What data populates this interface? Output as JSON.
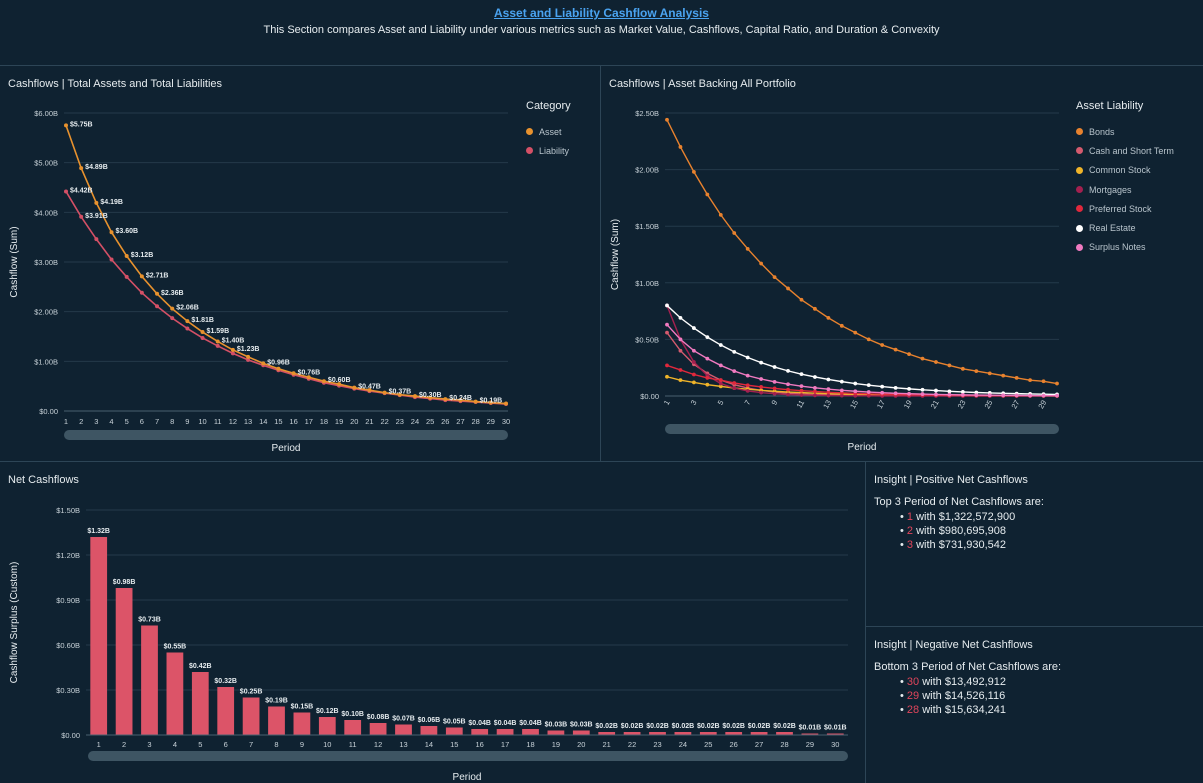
{
  "header": {
    "title": "Asset and Liability Cashflow Analysis",
    "subtitle": "This Section compares Asset and Liability under various metrics such as Market Value, Cashflows, Capital Ratio, and Duration & Convexity"
  },
  "colors": {
    "background": "#0f2231",
    "asset": "#e8922e",
    "liability": "#d45066",
    "bar": "#dc5468",
    "accent_link": "#4aa3f0",
    "highlight_number": "#e0455b"
  },
  "panels": {
    "total": {
      "title": "Cashflows | Total Assets and Total Liabilities"
    },
    "portfolio": {
      "title": "Cashflows | Asset Backing All Portfolio"
    },
    "net": {
      "title": "Net Cashflows"
    },
    "insight_positive": {
      "title": "Insight | Positive Net Cashflows",
      "intro": "Top 3 Period of Net Cashflows  are:",
      "items": [
        {
          "period": "1",
          "text": " with $1,322,572,900"
        },
        {
          "period": "2",
          "text": " with $980,695,908"
        },
        {
          "period": "3",
          "text": " with $731,930,542"
        }
      ]
    },
    "insight_negative": {
      "title": "Insight | Negative Net Cashflows",
      "intro": "Bottom 3 Period of Net Cashflows are:",
      "items": [
        {
          "period": "30",
          "text": " with $13,492,912"
        },
        {
          "period": "29",
          "text": " with $14,526,116"
        },
        {
          "period": "28",
          "text": " with $15,634,241"
        }
      ]
    }
  },
  "chart_data": [
    {
      "id": "total",
      "type": "line",
      "title": "Cashflows | Total Assets and Total Liabilities",
      "xlabel": "Period",
      "ylabel": "Cashflow (Sum)",
      "ylim": [
        0,
        6.0
      ],
      "yticks": [
        0,
        1,
        2,
        3,
        4,
        5,
        6
      ],
      "ytick_labels": [
        "$0.00",
        "$1.00B",
        "$2.00B",
        "$3.00B",
        "$4.00B",
        "$5.00B",
        "$6.00B"
      ],
      "x": [
        1,
        2,
        3,
        4,
        5,
        6,
        7,
        8,
        9,
        10,
        11,
        12,
        13,
        14,
        15,
        16,
        17,
        18,
        19,
        20,
        21,
        22,
        23,
        24,
        25,
        26,
        27,
        28,
        29,
        30
      ],
      "legend_title": "Category",
      "legend_position": "right",
      "grid": true,
      "series": [
        {
          "name": "Asset",
          "color": "#e8922e",
          "values": [
            5.75,
            4.89,
            4.19,
            3.6,
            3.12,
            2.71,
            2.36,
            2.06,
            1.81,
            1.59,
            1.4,
            1.23,
            1.09,
            0.96,
            0.85,
            0.76,
            0.68,
            0.6,
            0.54,
            0.47,
            0.42,
            0.37,
            0.33,
            0.3,
            0.27,
            0.24,
            0.22,
            0.19,
            0.17,
            0.15
          ],
          "labels": [
            "$5.75B",
            "$4.89B",
            "$4.19B",
            "$3.60B",
            "$3.12B",
            "$2.71B",
            "$2.36B",
            "$2.06B",
            "$1.81B",
            "$1.59B",
            "$1.40B",
            "$1.23B",
            "",
            "$0.96B",
            "",
            "$0.76B",
            "",
            "$0.60B",
            "",
            "$0.47B",
            "",
            "$0.37B",
            "",
            "$0.30B",
            "",
            "$0.24B",
            "",
            "$0.19B",
            "",
            ""
          ]
        },
        {
          "name": "Liability",
          "color": "#d45066",
          "values": [
            4.42,
            3.91,
            3.46,
            3.05,
            2.7,
            2.38,
            2.11,
            1.87,
            1.66,
            1.47,
            1.31,
            1.16,
            1.03,
            0.92,
            0.82,
            0.73,
            0.65,
            0.57,
            0.51,
            0.45,
            0.4,
            0.36,
            0.32,
            0.28,
            0.25,
            0.22,
            0.2,
            0.18,
            0.16,
            0.14
          ],
          "labels": [
            "$4.42B",
            "$3.91B",
            "",
            "",
            "",
            "",
            "",
            "",
            "",
            "",
            "",
            "",
            "",
            "",
            "",
            "",
            "",
            "",
            "",
            "",
            "",
            "",
            "",
            "",
            "",
            "",
            "",
            "",
            "",
            ""
          ]
        }
      ]
    },
    {
      "id": "portfolio",
      "type": "line",
      "title": "Cashflows | Asset Backing All Portfolio",
      "xlabel": "Period",
      "ylabel": "Cashflow (Sum)",
      "ylim": [
        0,
        2.5
      ],
      "yticks": [
        0,
        0.5,
        1.0,
        1.5,
        2.0,
        2.5
      ],
      "ytick_labels": [
        "$0.00",
        "$0.50B",
        "$1.00B",
        "$1.50B",
        "$2.00B",
        "$2.50B"
      ],
      "x": [
        1,
        2,
        3,
        4,
        5,
        6,
        7,
        8,
        9,
        10,
        11,
        12,
        13,
        14,
        15,
        16,
        17,
        18,
        19,
        20,
        21,
        22,
        23,
        24,
        25,
        26,
        27,
        28,
        29,
        30
      ],
      "xtick_labels": [
        "1",
        "3",
        "5",
        "7",
        "9",
        "11",
        "13",
        "15",
        "17",
        "19",
        "21",
        "23",
        "25",
        "27",
        "29"
      ],
      "legend_title": "Asset Liability",
      "legend_position": "right",
      "grid": true,
      "series": [
        {
          "name": "Bonds",
          "color": "#e8822e",
          "values": [
            2.44,
            2.2,
            1.98,
            1.78,
            1.6,
            1.44,
            1.3,
            1.17,
            1.05,
            0.95,
            0.85,
            0.77,
            0.69,
            0.62,
            0.56,
            0.5,
            0.45,
            0.41,
            0.37,
            0.33,
            0.3,
            0.27,
            0.24,
            0.22,
            0.2,
            0.18,
            0.16,
            0.14,
            0.13,
            0.11
          ]
        },
        {
          "name": "Cash and Short Term",
          "color": "#d45a6e",
          "values": [
            0.56,
            0.4,
            0.28,
            0.2,
            0.14,
            0.1,
            0.07,
            0.05,
            0.035,
            0.025,
            0.018,
            0.013,
            0.01,
            0.008,
            0.006,
            0.005,
            0.004,
            0.003,
            0.002,
            0.002,
            0.002,
            0.001,
            0.001,
            0.001,
            0.001,
            0.001,
            0.001,
            0.001,
            0.001,
            0.001
          ]
        },
        {
          "name": "Common Stock",
          "color": "#f0b429",
          "values": [
            0.17,
            0.14,
            0.12,
            0.1,
            0.085,
            0.07,
            0.06,
            0.05,
            0.042,
            0.035,
            0.03,
            0.025,
            0.02,
            0.017,
            0.014,
            0.012,
            0.01,
            0.008,
            0.007,
            0.006,
            0.005,
            0.004,
            0.004,
            0.003,
            0.003,
            0.002,
            0.002,
            0.002,
            0.002,
            0.001
          ]
        },
        {
          "name": "Mortgages",
          "color": "#a3204f",
          "values": [
            0.8,
            0.5,
            0.3,
            0.18,
            0.11,
            0.07,
            0.045,
            0.03,
            0.02,
            0.013,
            0.009,
            0.006,
            0.004,
            0.003,
            0.002,
            0.002,
            0.001,
            0.001,
            0.001,
            0.001,
            0.001,
            0.001,
            0.001,
            0.001,
            0.001,
            0.001,
            0.001,
            0.001,
            0.001,
            0.001
          ]
        },
        {
          "name": "Preferred Stock",
          "color": "#e0283c",
          "values": [
            0.27,
            0.23,
            0.19,
            0.16,
            0.14,
            0.115,
            0.095,
            0.08,
            0.067,
            0.056,
            0.047,
            0.04,
            0.033,
            0.028,
            0.023,
            0.019,
            0.016,
            0.014,
            0.012,
            0.01,
            0.008,
            0.007,
            0.006,
            0.005,
            0.004,
            0.004,
            0.003,
            0.003,
            0.002,
            0.002
          ]
        },
        {
          "name": "Real Estate",
          "color": "#ffffff",
          "values": [
            0.8,
            0.69,
            0.6,
            0.52,
            0.45,
            0.39,
            0.34,
            0.295,
            0.256,
            0.222,
            0.193,
            0.168,
            0.146,
            0.127,
            0.11,
            0.096,
            0.083,
            0.072,
            0.063,
            0.055,
            0.048,
            0.041,
            0.036,
            0.031,
            0.027,
            0.024,
            0.021,
            0.018,
            0.016,
            0.014
          ]
        },
        {
          "name": "Surplus Notes",
          "color": "#f07ac0",
          "values": [
            0.63,
            0.5,
            0.4,
            0.33,
            0.27,
            0.22,
            0.18,
            0.15,
            0.125,
            0.104,
            0.087,
            0.072,
            0.06,
            0.05,
            0.042,
            0.035,
            0.029,
            0.024,
            0.02,
            0.017,
            0.014,
            0.012,
            0.01,
            0.008,
            0.007,
            0.006,
            0.005,
            0.004,
            0.003,
            0.003
          ]
        }
      ]
    },
    {
      "id": "net",
      "type": "bar",
      "title": "Net Cashflows",
      "xlabel": "Period",
      "ylabel": "Cashflow Surplus (Custom)",
      "ylim": [
        0,
        1.5
      ],
      "yticks": [
        0,
        0.3,
        0.6,
        0.9,
        1.2,
        1.5
      ],
      "ytick_labels": [
        "$0.00",
        "$0.30B",
        "$0.60B",
        "$0.90B",
        "$1.20B",
        "$1.50B"
      ],
      "grid": true,
      "categories": [
        "1",
        "2",
        "3",
        "4",
        "5",
        "6",
        "7",
        "8",
        "9",
        "10",
        "11",
        "12",
        "13",
        "14",
        "15",
        "16",
        "17",
        "18",
        "19",
        "20",
        "21",
        "22",
        "23",
        "24",
        "25",
        "26",
        "27",
        "28",
        "29",
        "30"
      ],
      "values": [
        1.32,
        0.98,
        0.73,
        0.55,
        0.42,
        0.32,
        0.25,
        0.19,
        0.15,
        0.12,
        0.1,
        0.08,
        0.07,
        0.06,
        0.05,
        0.04,
        0.04,
        0.04,
        0.03,
        0.03,
        0.02,
        0.02,
        0.02,
        0.02,
        0.02,
        0.02,
        0.02,
        0.02,
        0.01,
        0.01
      ],
      "labels": [
        "$1.32B",
        "$0.98B",
        "$0.73B",
        "$0.55B",
        "$0.42B",
        "$0.32B",
        "$0.25B",
        "$0.19B",
        "$0.15B",
        "$0.12B",
        "$0.10B",
        "$0.08B",
        "$0.07B",
        "$0.06B",
        "$0.05B",
        "$0.04B",
        "$0.04B",
        "$0.04B",
        "$0.03B",
        "$0.03B",
        "$0.02B",
        "$0.02B",
        "$0.02B",
        "$0.02B",
        "$0.02B",
        "$0.02B",
        "$0.02B",
        "$0.02B",
        "$0.01B",
        "$0.01B"
      ],
      "color": "#dc5468"
    }
  ]
}
